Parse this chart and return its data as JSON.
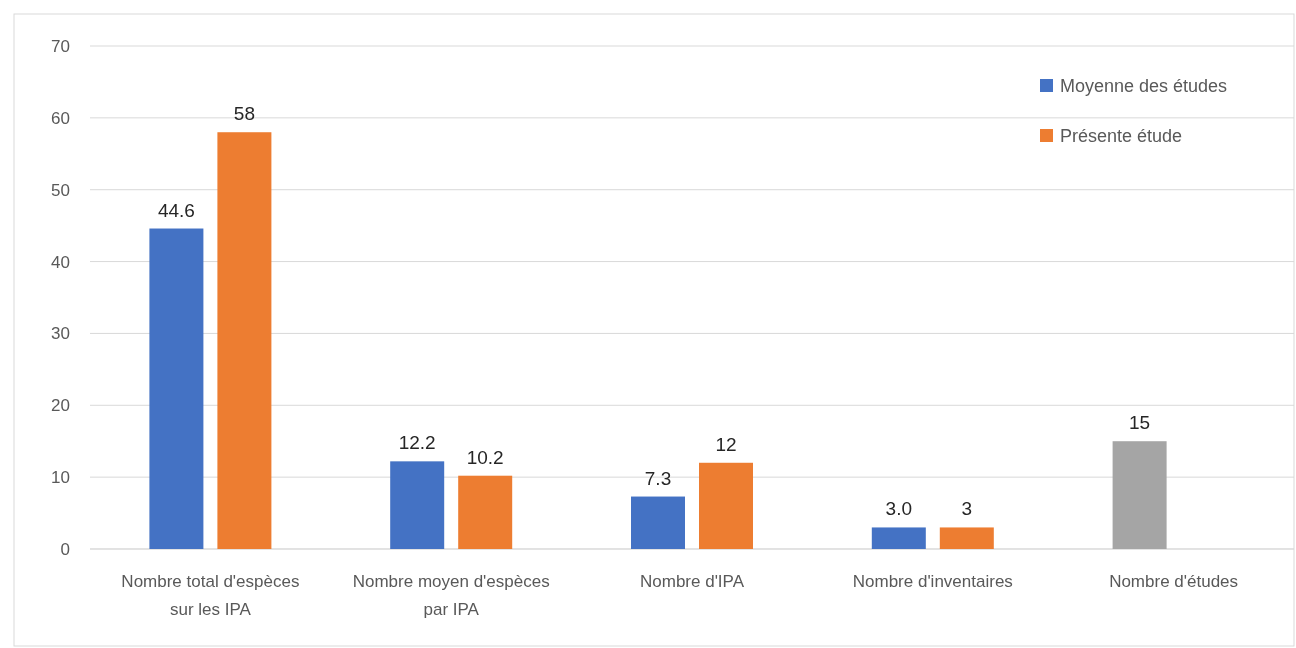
{
  "chart_data": {
    "type": "bar",
    "categories": [
      "Nombre total d'espèces sur les IPA",
      "Nombre moyen d'espèces par IPA",
      "Nombre d'IPA",
      "Nombre d'inventaires",
      "Nombre d'études"
    ],
    "series": [
      {
        "name": "Moyenne des études",
        "color": "#4472c4",
        "colors": [
          "#4472c4",
          "#4472c4",
          "#4472c4",
          "#4472c4",
          "#a5a5a5"
        ],
        "values": [
          44.6,
          12.2,
          7.3,
          3.0,
          15
        ],
        "value_labels": [
          "44.6",
          "12.2",
          "7.3",
          "3.0",
          "15"
        ]
      },
      {
        "name": "Présente étude",
        "color": "#ed7d31",
        "values": [
          58,
          10.2,
          12,
          3,
          null
        ],
        "value_labels": [
          "58",
          "10.2",
          "12",
          "3",
          null
        ]
      }
    ],
    "ylim": [
      0,
      70
    ],
    "yticks": [
      0,
      10,
      20,
      30,
      40,
      50,
      60,
      70
    ],
    "grid": "y",
    "legend": "top right"
  }
}
